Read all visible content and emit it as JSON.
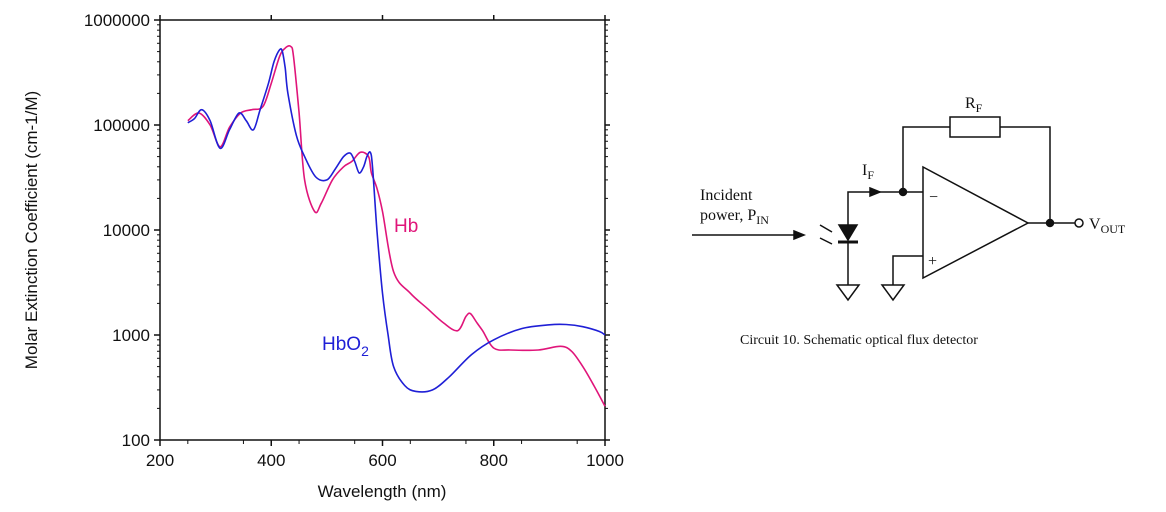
{
  "chart_data": {
    "type": "line",
    "title": "",
    "xlabel": "Wavelength (nm)",
    "ylabel": "Molar Extinction Coefficient (cm-1/M)",
    "xlim": [
      200,
      1000
    ],
    "ylim": [
      100,
      1000000
    ],
    "y_scale": "log",
    "x_ticks": [
      200,
      400,
      600,
      800,
      1000
    ],
    "x_tick_labels": [
      "200",
      "400",
      "600",
      "800",
      "1000"
    ],
    "y_ticks": [
      100,
      1000,
      10000,
      100000,
      1000000
    ],
    "y_tick_labels": [
      "100",
      "1000",
      "10000",
      "100000",
      "1000000"
    ],
    "grid": false,
    "series": [
      {
        "name": "Hb",
        "color": "#e0157a",
        "x": [
          250,
          270,
          290,
          308,
          325,
          345,
          365,
          385,
          400,
          415,
          425,
          435,
          440,
          450,
          460,
          478,
          490,
          510,
          530,
          545,
          560,
          575,
          580,
          590,
          600,
          620,
          650,
          680,
          710,
          735,
          750,
          758,
          770,
          780,
          800,
          830,
          880,
          920,
          940,
          960,
          980,
          1000
        ],
        "y": [
          110000,
          130000,
          100000,
          62000,
          95000,
          130000,
          140000,
          150000,
          250000,
          450000,
          540000,
          560000,
          450000,
          130000,
          30000,
          15000,
          18000,
          30000,
          40000,
          45000,
          55000,
          50000,
          35000,
          25000,
          15000,
          4000,
          2500,
          1800,
          1300,
          1100,
          1500,
          1600,
          1300,
          1100,
          750,
          720,
          720,
          780,
          700,
          500,
          330,
          210
        ]
      },
      {
        "name": "HbO",
        "name_subscript": "2",
        "color": "#1f1fd6",
        "x": [
          250,
          262,
          275,
          290,
          308,
          325,
          342,
          355,
          368,
          380,
          395,
          405,
          415,
          420,
          425,
          430,
          445,
          460,
          480,
          500,
          515,
          530,
          542,
          550,
          558,
          566,
          572,
          578,
          582,
          590,
          600,
          610,
          620,
          640,
          660,
          690,
          720,
          760,
          800,
          850,
          900,
          930,
          960,
          990,
          1000
        ],
        "y": [
          105000,
          115000,
          140000,
          110000,
          60000,
          90000,
          130000,
          110000,
          90000,
          140000,
          250000,
          400000,
          520000,
          500000,
          350000,
          200000,
          80000,
          50000,
          32000,
          30000,
          38000,
          50000,
          54000,
          45000,
          35000,
          40000,
          50000,
          55000,
          40000,
          10000,
          2500,
          1000,
          500,
          330,
          290,
          300,
          400,
          650,
          900,
          1150,
          1250,
          1260,
          1200,
          1080,
          1000
        ]
      }
    ]
  },
  "circuit": {
    "feedback_resistor_label": "R",
    "feedback_resistor_sub": "F",
    "current_label": "I",
    "current_sub": "F",
    "incident_line1": "Incident",
    "incident_line2": "power, P",
    "incident_sub": "IN",
    "inverting_sign": "−",
    "noninverting_sign": "+",
    "output_label": "V",
    "output_sub": "OUT",
    "caption": "Circuit 10. Schematic optical flux detector"
  }
}
